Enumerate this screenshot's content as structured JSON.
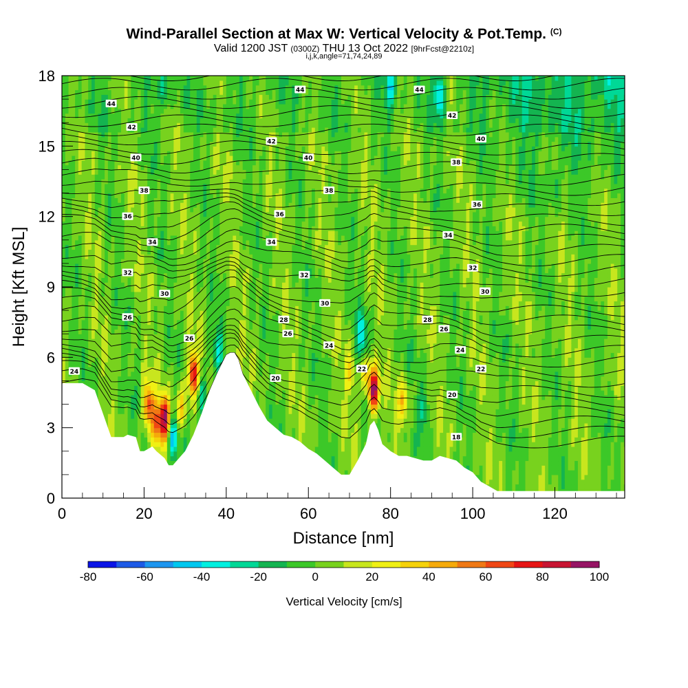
{
  "title": {
    "main": "Wind-Parallel Section at Max W: Vertical Velocity & Pot.Temp.",
    "mark": "(C)",
    "valid_prefix": "Valid 1200 JST",
    "valid_zulu": "(0300Z)",
    "valid_date": "THU 13 Oct 2022",
    "forecast": "[9hrFcst@2210z]",
    "params": "i,j,k,angle=71,74,24,89"
  },
  "chart_data": {
    "type": "heatmap",
    "xlabel": "Distance [nm]",
    "ylabel": "Height [Kft MSL]",
    "xlim": [
      0,
      137
    ],
    "ylim": [
      0,
      18
    ],
    "x_ticks": [
      0,
      20,
      40,
      60,
      80,
      100,
      120
    ],
    "y_ticks": [
      0,
      3,
      6,
      9,
      12,
      15,
      18
    ],
    "terrain": {
      "x": [
        0,
        5,
        8,
        12,
        15,
        16,
        18,
        19,
        20,
        22,
        23,
        25,
        26,
        27,
        28,
        30,
        32,
        34,
        36,
        38,
        40,
        41,
        42,
        43,
        44,
        46,
        48,
        50,
        52,
        54,
        56,
        58,
        60,
        62,
        64,
        66,
        68,
        70,
        72,
        74,
        75,
        76,
        77,
        78,
        80,
        82,
        84,
        86,
        88,
        90,
        92,
        94,
        96,
        98,
        100,
        102,
        104,
        106,
        108,
        110,
        115,
        120,
        125,
        130,
        137
      ],
      "height_kft": [
        4.9,
        4.9,
        4.6,
        2.6,
        2.6,
        2.7,
        2.6,
        2.0,
        2.0,
        2.2,
        2.0,
        1.7,
        1.4,
        1.4,
        1.6,
        2.0,
        2.7,
        3.6,
        4.6,
        5.4,
        6.1,
        6.2,
        6.2,
        5.9,
        5.3,
        4.6,
        3.9,
        3.3,
        3.0,
        2.7,
        2.6,
        2.4,
        2.1,
        1.9,
        1.6,
        1.3,
        1.0,
        1.0,
        1.6,
        2.3,
        3.1,
        3.3,
        2.9,
        2.3,
        2.0,
        1.8,
        1.8,
        1.7,
        1.6,
        1.6,
        1.8,
        1.7,
        1.6,
        1.3,
        1.1,
        0.7,
        0.5,
        0.3,
        0.3,
        0.3,
        0.3,
        0.3,
        0.3,
        0.3,
        0.3
      ]
    },
    "vertical_velocity": {
      "label": "Vertical Velocity [cm/s]",
      "units": "cm/s",
      "levels": [
        -80,
        -70,
        -60,
        -50,
        -40,
        -30,
        -20,
        -10,
        0,
        10,
        20,
        30,
        40,
        50,
        60,
        70,
        80,
        90,
        100
      ],
      "tick_labels": [
        -80,
        -60,
        -40,
        -20,
        0,
        20,
        40,
        60,
        80,
        100
      ],
      "colors": [
        "#0a14e6",
        "#1e5ae6",
        "#1e96f0",
        "#00c8f0",
        "#00f0e0",
        "#00d896",
        "#14b450",
        "#3cc828",
        "#78d21e",
        "#c8e61e",
        "#f0f014",
        "#f5d20a",
        "#f5aa0a",
        "#f07814",
        "#f04614",
        "#e61414",
        "#c81432",
        "#961464",
        "#5a148c"
      ],
      "features": [
        {
          "x": 21,
          "z": 4.0,
          "w": 65
        },
        {
          "x": 23,
          "z": 3.2,
          "w": 55
        },
        {
          "x": 25,
          "z": 3.4,
          "w": 95
        },
        {
          "x": 27,
          "z": 2.5,
          "w": -45
        },
        {
          "x": 29,
          "z": 3.8,
          "w": 40
        },
        {
          "x": 32,
          "z": 5.3,
          "w": 80
        },
        {
          "x": 34,
          "z": 4.3,
          "w": -35
        },
        {
          "x": 38,
          "z": 6.4,
          "w": -30
        },
        {
          "x": 70,
          "z": 5.3,
          "w": 25
        },
        {
          "x": 73,
          "z": 6.9,
          "w": -40
        },
        {
          "x": 74,
          "z": 5.3,
          "w": 35
        },
        {
          "x": 76,
          "z": 4.6,
          "w": 100
        },
        {
          "x": 83,
          "z": 4.1,
          "w": 35
        },
        {
          "x": 88,
          "z": 3.8,
          "w": -25
        },
        {
          "x": 92,
          "z": 17.2,
          "w": -45
        },
        {
          "x": 80,
          "z": 17.5,
          "w": -35
        },
        {
          "x": 25,
          "z": 17.5,
          "w": -25
        },
        {
          "x": 120,
          "z": 13.3,
          "w": -20
        }
      ]
    },
    "potential_temperature": {
      "label": "Pot.Temp.",
      "units": "C",
      "contour_labels": [
        {
          "x": 3,
          "z": 5.4,
          "value": "24"
        },
        {
          "x": 31,
          "z": 6.8,
          "value": "26"
        },
        {
          "x": 16,
          "z": 7.7,
          "value": "26"
        },
        {
          "x": 25,
          "z": 8.7,
          "value": "30"
        },
        {
          "x": 16,
          "z": 9.6,
          "value": "32"
        },
        {
          "x": 22,
          "z": 10.9,
          "value": "34"
        },
        {
          "x": 16,
          "z": 12.0,
          "value": "36"
        },
        {
          "x": 20,
          "z": 13.1,
          "value": "38"
        },
        {
          "x": 18,
          "z": 14.5,
          "value": "40"
        },
        {
          "x": 17,
          "z": 15.8,
          "value": "42"
        },
        {
          "x": 12,
          "z": 16.8,
          "value": "44"
        },
        {
          "x": 52,
          "z": 5.1,
          "value": "20"
        },
        {
          "x": 55,
          "z": 7.0,
          "value": "26"
        },
        {
          "x": 54,
          "z": 7.6,
          "value": "28"
        },
        {
          "x": 64,
          "z": 8.3,
          "value": "30"
        },
        {
          "x": 59,
          "z": 9.5,
          "value": "32"
        },
        {
          "x": 51,
          "z": 10.9,
          "value": "34"
        },
        {
          "x": 53,
          "z": 12.1,
          "value": "36"
        },
        {
          "x": 65,
          "z": 13.1,
          "value": "38"
        },
        {
          "x": 60,
          "z": 14.5,
          "value": "40"
        },
        {
          "x": 51,
          "z": 15.2,
          "value": "42"
        },
        {
          "x": 58,
          "z": 17.4,
          "value": "44"
        },
        {
          "x": 65,
          "z": 6.5,
          "value": "24"
        },
        {
          "x": 73,
          "z": 5.5,
          "value": "22"
        },
        {
          "x": 89,
          "z": 7.6,
          "value": "28"
        },
        {
          "x": 93,
          "z": 7.2,
          "value": "26"
        },
        {
          "x": 97,
          "z": 6.3,
          "value": "24"
        },
        {
          "x": 102,
          "z": 5.5,
          "value": "22"
        },
        {
          "x": 95,
          "z": 4.4,
          "value": "20"
        },
        {
          "x": 96,
          "z": 2.6,
          "value": "18"
        },
        {
          "x": 103,
          "z": 8.8,
          "value": "30"
        },
        {
          "x": 100,
          "z": 9.8,
          "value": "32"
        },
        {
          "x": 94,
          "z": 11.2,
          "value": "34"
        },
        {
          "x": 101,
          "z": 12.5,
          "value": "36"
        },
        {
          "x": 96,
          "z": 14.3,
          "value": "38"
        },
        {
          "x": 102,
          "z": 15.3,
          "value": "40"
        },
        {
          "x": 95,
          "z": 16.3,
          "value": "42"
        },
        {
          "x": 87,
          "z": 17.4,
          "value": "44"
        }
      ]
    }
  }
}
